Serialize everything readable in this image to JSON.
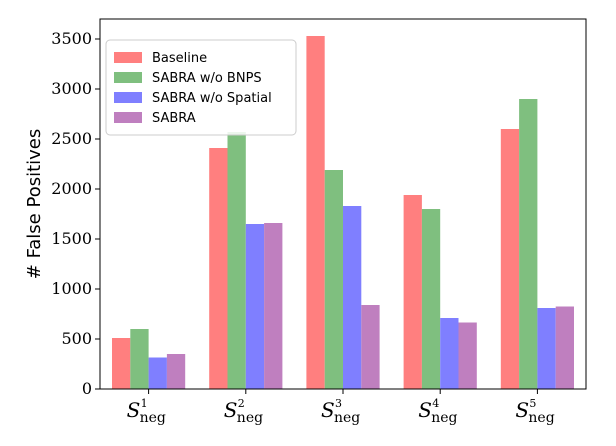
{
  "chart_data": {
    "type": "bar",
    "title": "",
    "xlabel": "",
    "ylabel": "# False Positives",
    "ylim": [
      0,
      3700
    ],
    "yticks": [
      0,
      500,
      1000,
      1500,
      2000,
      2500,
      3000,
      3500
    ],
    "categories": [
      "S_neg^1",
      "S_neg^2",
      "S_neg^3",
      "S_neg^4",
      "S_neg^5"
    ],
    "category_parts": [
      {
        "main": "S",
        "sub": "neg",
        "sup": "1"
      },
      {
        "main": "S",
        "sub": "neg",
        "sup": "2"
      },
      {
        "main": "S",
        "sub": "neg",
        "sup": "3"
      },
      {
        "main": "S",
        "sub": "neg",
        "sup": "4"
      },
      {
        "main": "S",
        "sub": "neg",
        "sup": "5"
      }
    ],
    "series": [
      {
        "name": "Baseline",
        "color": "#ff7f7f",
        "values": [
          510,
          2410,
          3530,
          1940,
          2600
        ]
      },
      {
        "name": "SABRA w/o BNPS",
        "color": "#7fbf7f",
        "values": [
          600,
          2570,
          2190,
          1800,
          2900
        ]
      },
      {
        "name": "SABRA w/o Spatial",
        "color": "#7f7fff",
        "values": [
          315,
          1650,
          1830,
          710,
          810
        ]
      },
      {
        "name": "SABRA",
        "color": "#bf7fbf",
        "values": [
          350,
          1660,
          840,
          665,
          825
        ]
      }
    ],
    "legend_position": "upper-left",
    "grid": false
  }
}
